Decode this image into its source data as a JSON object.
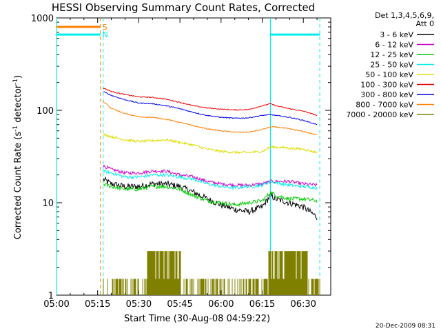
{
  "chart_data": {
    "type": "line",
    "title": "HESSI Observing Summary Count Rates, Corrected",
    "xlabel": "Start Time (30-Aug-08 04:59:22)",
    "ylabel_main": "Corrected Count Rate (s",
    "ylabel_sup1": "-1",
    "ylabel_mid": " detector",
    "ylabel_sup2": "-1",
    "ylabel_end": ")",
    "x_unit": "minutes after 05:00",
    "xlim": [
      0,
      100
    ],
    "ylim": [
      1,
      1000
    ],
    "yscale": "log",
    "xticks": [
      {
        "v": 0,
        "label": "05:00"
      },
      {
        "v": 15,
        "label": "05:15"
      },
      {
        "v": 30,
        "label": "05:30"
      },
      {
        "v": 45,
        "label": "05:45"
      },
      {
        "v": 60,
        "label": "06:00"
      },
      {
        "v": 75,
        "label": "06:15"
      },
      {
        "v": 90,
        "label": "06:30"
      }
    ],
    "yticks": [
      {
        "v": 1,
        "label": "1"
      },
      {
        "v": 10,
        "label": "10"
      },
      {
        "v": 100,
        "label": "100"
      },
      {
        "v": 1000,
        "label": "1000"
      }
    ],
    "legend_header": [
      "Det 1,3,4,5,6,9,",
      "Att 0"
    ],
    "legend_placement": "top-right outside",
    "series": [
      {
        "name": "3 - 6 keV",
        "color": "#000000",
        "noise": 0.08,
        "x": [
          17,
          20,
          25,
          30,
          35,
          40,
          45,
          50,
          55,
          60,
          65,
          70,
          75,
          78,
          80,
          85,
          90,
          95
        ],
        "y": [
          18,
          16,
          15,
          15,
          16,
          16,
          15,
          13,
          11,
          9.5,
          8.5,
          8,
          9,
          12,
          11,
          10,
          9,
          7
        ]
      },
      {
        "name": "6 - 12 keV",
        "color": "#cc00cc",
        "noise": 0.04,
        "x": [
          17,
          20,
          25,
          30,
          35,
          40,
          45,
          50,
          55,
          60,
          65,
          70,
          75,
          78,
          80,
          85,
          90,
          95
        ],
        "y": [
          25,
          23,
          21,
          21,
          22,
          22,
          20,
          19,
          17,
          16,
          15.5,
          15.5,
          16,
          17,
          17,
          17,
          16,
          15.5
        ]
      },
      {
        "name": "12 - 25 keV",
        "color": "#00cc00",
        "noise": 0.05,
        "x": [
          17,
          20,
          25,
          30,
          35,
          40,
          45,
          50,
          55,
          60,
          65,
          70,
          75,
          78,
          80,
          85,
          90,
          95
        ],
        "y": [
          16,
          15,
          14,
          14,
          15,
          15,
          14,
          12,
          10.5,
          10,
          9.5,
          10,
          10.5,
          13,
          12,
          11,
          11,
          10.5
        ]
      },
      {
        "name": "25 - 50 keV",
        "color": "#00eeee",
        "noise": 0.04,
        "x": [
          17,
          20,
          25,
          30,
          35,
          40,
          45,
          50,
          55,
          60,
          65,
          70,
          75,
          78,
          80,
          85,
          90,
          95
        ],
        "y": [
          22,
          21,
          19,
          19,
          20,
          20,
          19,
          18,
          16,
          15,
          14.5,
          15,
          15.5,
          17,
          16.5,
          15.5,
          15,
          14.5
        ]
      },
      {
        "name": "50 - 100 keV",
        "color": "#dddd00",
        "noise": 0.03,
        "x": [
          17,
          20,
          25,
          30,
          35,
          40,
          45,
          50,
          55,
          60,
          65,
          70,
          75,
          78,
          80,
          85,
          90,
          95
        ],
        "y": [
          55,
          52,
          48,
          46,
          47,
          48,
          45,
          42,
          38,
          36,
          35,
          35,
          36,
          40,
          40,
          39,
          38,
          35
        ]
      },
      {
        "name": "100 - 300 keV",
        "color": "#ee0000",
        "noise": 0.012,
        "x": [
          17,
          20,
          25,
          30,
          35,
          40,
          45,
          50,
          55,
          60,
          65,
          70,
          75,
          78,
          80,
          85,
          90,
          95
        ],
        "y": [
          175,
          160,
          148,
          140,
          138,
          132,
          122,
          112,
          106,
          103,
          101,
          102,
          112,
          118,
          112,
          104,
          98,
          88
        ]
      },
      {
        "name": "300 - 800 keV",
        "color": "#0000ee",
        "noise": 0.012,
        "x": [
          17,
          20,
          25,
          30,
          35,
          40,
          45,
          50,
          55,
          60,
          65,
          70,
          75,
          78,
          80,
          85,
          90,
          95
        ],
        "y": [
          160,
          145,
          130,
          120,
          118,
          112,
          104,
          95,
          88,
          84,
          82,
          83,
          88,
          90,
          88,
          84,
          78,
          70
        ]
      },
      {
        "name": "800 - 7000 keV",
        "color": "#ff7f00",
        "noise": 0.012,
        "x": [
          17,
          20,
          25,
          30,
          35,
          40,
          45,
          50,
          55,
          60,
          65,
          70,
          75,
          78,
          80,
          85,
          90,
          95
        ],
        "y": [
          125,
          105,
          92,
          85,
          84,
          80,
          74,
          68,
          63,
          60,
          58,
          58,
          62,
          66,
          66,
          63,
          59,
          54
        ]
      },
      {
        "name": "7000 - 20000 keV",
        "color": "#808000",
        "noise": 0,
        "x": [],
        "y": []
      }
    ],
    "flags": [
      {
        "label": "S",
        "color": "#ff7f00",
        "value": 800,
        "segments": [
          [
            0,
            16
          ]
        ]
      },
      {
        "label": "N",
        "color": "#00eeee",
        "value": 660,
        "segments": [
          [
            0,
            16
          ],
          [
            78,
            96
          ]
        ]
      }
    ],
    "vlines_solid": [
      [
        0
      ],
      [
        78
      ]
    ],
    "vlines_dashed": [
      16,
      17,
      96
    ],
    "footer_date": "20-Dec-2009 08:31"
  }
}
